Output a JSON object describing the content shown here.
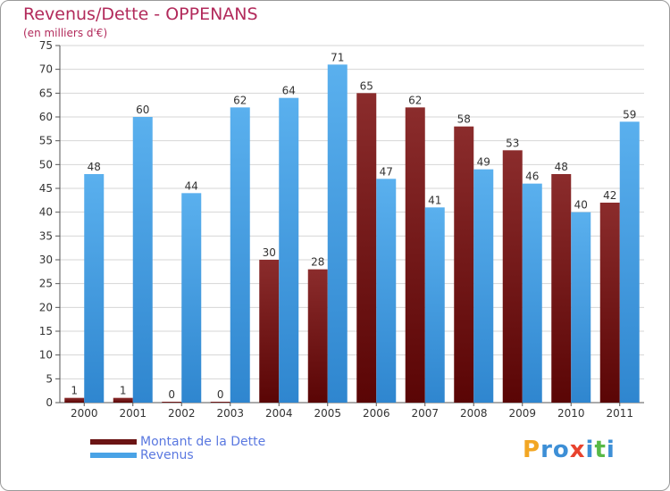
{
  "chart_data": {
    "type": "bar",
    "title": "Revenus/Dette - OPPENANS",
    "subtitle": "(en milliers d'€)",
    "categories": [
      "2000",
      "2001",
      "2002",
      "2003",
      "2004",
      "2005",
      "2006",
      "2007",
      "2008",
      "2009",
      "2010",
      "2011"
    ],
    "series": [
      {
        "name": "Montant de la Dette",
        "color": "#6b1414",
        "values": [
          1,
          1,
          0,
          0,
          30,
          28,
          65,
          62,
          58,
          53,
          48,
          42
        ]
      },
      {
        "name": "Revenus",
        "color": "#4aa3e6",
        "values": [
          48,
          60,
          44,
          62,
          64,
          71,
          47,
          41,
          49,
          46,
          40,
          59
        ]
      }
    ],
    "ylim": [
      0,
      75
    ],
    "yticks": [
      0,
      5,
      10,
      15,
      20,
      25,
      30,
      35,
      40,
      45,
      50,
      55,
      60,
      65,
      70,
      75
    ],
    "grid": true,
    "legend_position": "bottom-left"
  },
  "logo": {
    "letters": [
      "P",
      "r",
      "o",
      "x",
      "i",
      "t",
      "i"
    ],
    "colors": [
      "#f2a623",
      "#3d8fd6",
      "#3d8fd6",
      "#e8432e",
      "#3d8fd6",
      "#58b947",
      "#3d8fd6"
    ]
  }
}
